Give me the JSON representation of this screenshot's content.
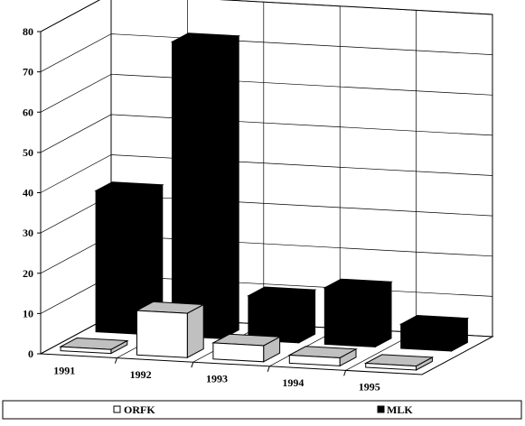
{
  "chart_data": {
    "type": "bar",
    "subtype": "3d-column",
    "categories": [
      "1991",
      "1992",
      "1993",
      "1994",
      "1995"
    ],
    "series": [
      {
        "name": "ORFK",
        "values": [
          1,
          11,
          4,
          2,
          1
        ],
        "color": "#ffffff",
        "color_dark": "#c0c0c0"
      },
      {
        "name": "MLK",
        "values": [
          35,
          73,
          11,
          14,
          6
        ],
        "color": "#000000",
        "color_dark": "#000000"
      }
    ],
    "ylim": [
      0,
      80
    ],
    "yticks": [
      0,
      10,
      20,
      30,
      40,
      50,
      60,
      70,
      80
    ],
    "grid": true,
    "legend_position": "bottom"
  }
}
